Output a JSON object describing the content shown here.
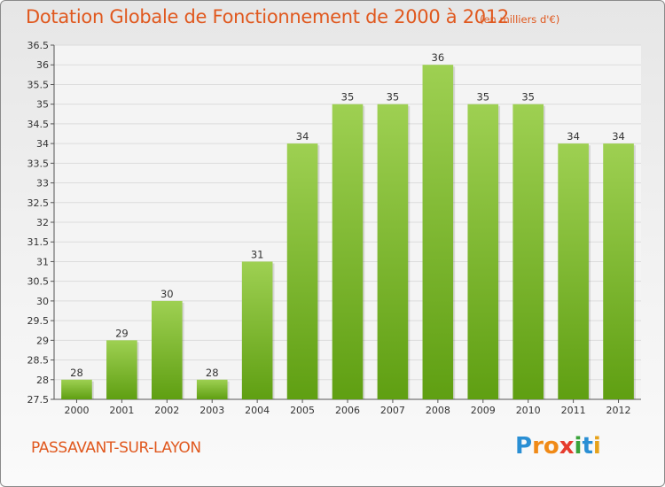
{
  "chart_data": {
    "type": "bar",
    "title": "Dotation Globale de Fonctionnement de 2000 à 2012",
    "subtitle": "(en milliers d'€)",
    "categories": [
      "2000",
      "2001",
      "2002",
      "2003",
      "2004",
      "2005",
      "2006",
      "2007",
      "2008",
      "2009",
      "2010",
      "2011",
      "2012"
    ],
    "values": [
      28,
      29,
      30,
      28,
      31,
      34,
      35,
      35,
      36,
      35,
      35,
      34,
      34
    ],
    "ylim": [
      27.5,
      36.5
    ],
    "yticks": [
      "27.5",
      "28",
      "28.5",
      "29",
      "29.5",
      "30",
      "30.5",
      "31",
      "31.5",
      "32",
      "32.5",
      "33",
      "33.5",
      "34",
      "34.5",
      "35",
      "35.5",
      "36",
      "36.5"
    ],
    "grid": true,
    "colors": {
      "bar_top": "#9ed052",
      "bar_bottom": "#5f9f12",
      "text": "#e0581e"
    }
  },
  "footer": {
    "town": "PASSAVANT-SUR-LAYON",
    "logo": [
      {
        "ch": "P",
        "color": "#2a8fd4"
      },
      {
        "ch": "r",
        "color": "#f08a17"
      },
      {
        "ch": "o",
        "color": "#f08a17"
      },
      {
        "ch": "x",
        "color": "#e63c2e"
      },
      {
        "ch": "i",
        "color": "#3aa33a"
      },
      {
        "ch": "t",
        "color": "#2a8fd4"
      },
      {
        "ch": "i",
        "color": "#e6a21a"
      }
    ]
  }
}
